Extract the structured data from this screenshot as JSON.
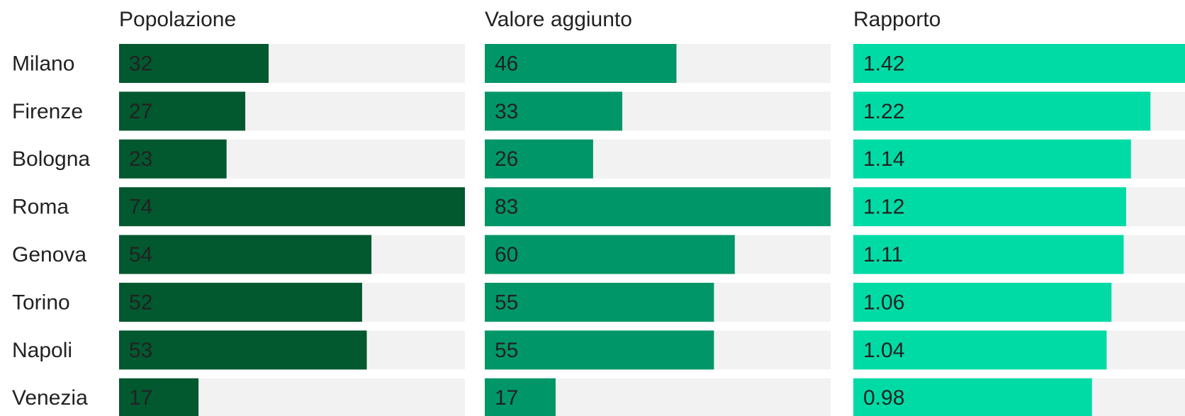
{
  "chart_data": {
    "type": "bar",
    "categories": [
      "Milano",
      "Firenze",
      "Bologna",
      "Roma",
      "Genova",
      "Torino",
      "Napoli",
      "Venezia"
    ],
    "series": [
      {
        "name": "Popolazione",
        "color": "#02582f",
        "values": [
          32,
          27,
          23,
          74,
          54,
          52,
          53,
          17
        ]
      },
      {
        "name": "Valore aggiunto",
        "color": "#019668",
        "values": [
          46,
          33,
          26,
          83,
          60,
          55,
          55,
          17
        ]
      },
      {
        "name": "Rapporto",
        "color": "#00dba5",
        "values": [
          1.42,
          1.22,
          1.14,
          1.12,
          1.11,
          1.06,
          1.04,
          0.98
        ]
      }
    ]
  }
}
